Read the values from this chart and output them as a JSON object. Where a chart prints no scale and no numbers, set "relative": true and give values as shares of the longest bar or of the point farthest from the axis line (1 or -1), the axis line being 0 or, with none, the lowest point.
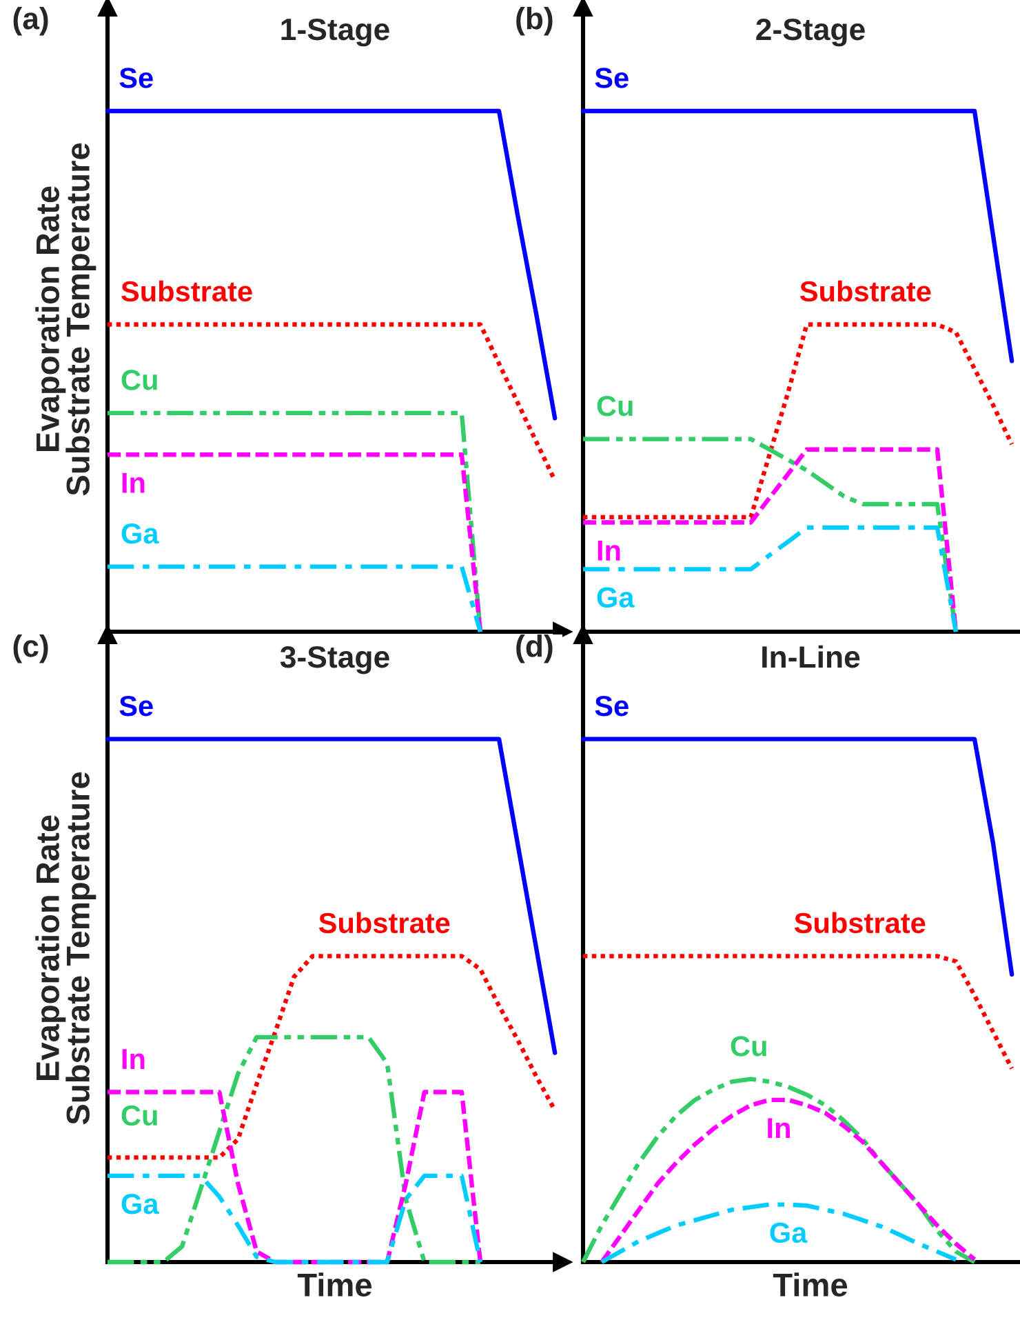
{
  "chart_data": [
    {
      "type": "line",
      "title": "1-Stage",
      "relative": true,
      "ylabel": "Evaporation Rate\nSubstrate Temperature",
      "annotations": [
        "(a)"
      ],
      "categories": [
        null,
        null,
        null,
        null,
        null,
        null,
        null,
        null,
        null,
        null,
        null,
        null,
        null,
        null,
        null,
        null,
        null,
        null,
        null,
        null,
        null,
        null,
        null,
        null,
        null
      ],
      "series": [
        {
          "name": "Se",
          "color": "#0000ff",
          "line_style": "solid",
          "values": [
            1,
            1,
            1,
            1,
            1,
            1,
            1,
            1,
            1,
            1,
            1,
            1,
            1,
            1,
            1,
            1,
            1,
            1,
            1,
            1,
            1,
            1,
            0.8,
            0.61,
            0.41
          ]
        },
        {
          "name": "Substrate",
          "color": "#ff0000",
          "line_style": "dotted",
          "values": [
            0.59,
            0.59,
            0.59,
            0.59,
            0.59,
            0.59,
            0.59,
            0.59,
            0.59,
            0.59,
            0.59,
            0.59,
            0.59,
            0.59,
            0.59,
            0.59,
            0.59,
            0.59,
            0.59,
            0.59,
            0.59,
            0.515,
            0.44,
            0.365,
            0.29
          ]
        },
        {
          "name": "Cu",
          "color": "#33cc66",
          "line_style": "dashdotdot",
          "values": [
            0.42,
            0.42,
            0.42,
            0.42,
            0.42,
            0.42,
            0.42,
            0.42,
            0.42,
            0.42,
            0.42,
            0.42,
            0.42,
            0.42,
            0.42,
            0.42,
            0.42,
            0.42,
            0.42,
            0.42,
            0,
            null,
            null,
            null,
            null
          ]
        },
        {
          "name": "In",
          "color": "#ff00ff",
          "line_style": "dashed",
          "values": [
            0.34,
            0.34,
            0.34,
            0.34,
            0.34,
            0.34,
            0.34,
            0.34,
            0.34,
            0.34,
            0.34,
            0.34,
            0.34,
            0.34,
            0.34,
            0.34,
            0.34,
            0.34,
            0.34,
            0.34,
            0,
            null,
            null,
            null,
            null
          ]
        },
        {
          "name": "Ga",
          "color": "#00ccff",
          "line_style": "dashdot",
          "values": [
            0.125,
            0.125,
            0.125,
            0.125,
            0.125,
            0.125,
            0.125,
            0.125,
            0.125,
            0.125,
            0.125,
            0.125,
            0.125,
            0.125,
            0.125,
            0.125,
            0.125,
            0.125,
            0.125,
            0.125,
            0,
            null,
            null,
            null,
            null
          ]
        }
      ]
    },
    {
      "type": "line",
      "title": "2-Stage",
      "relative": true,
      "annotations": [
        "(b)"
      ],
      "categories": [
        null,
        null,
        null,
        null,
        null,
        null,
        null,
        null,
        null,
        null,
        null,
        null,
        null,
        null,
        null,
        null,
        null,
        null,
        null,
        null,
        null,
        null,
        null,
        null,
        null
      ],
      "series": [
        {
          "name": "Se",
          "color": "#0000ff",
          "line_style": "solid",
          "values": [
            1,
            1,
            1,
            1,
            1,
            1,
            1,
            1,
            1,
            1,
            1,
            1,
            1,
            1,
            1,
            1,
            1,
            1,
            1,
            1,
            1,
            1,
            0.76,
            0.52,
            null
          ]
        },
        {
          "name": "Substrate",
          "color": "#ff0000",
          "line_style": "dotted",
          "values": [
            0.22,
            0.22,
            0.22,
            0.22,
            0.22,
            0.22,
            0.22,
            0.22,
            0.22,
            0.22,
            0.34,
            0.46,
            0.59,
            0.59,
            0.59,
            0.59,
            0.59,
            0.59,
            0.59,
            0.59,
            0.575,
            0.505,
            0.435,
            0.36,
            null
          ]
        },
        {
          "name": "Cu",
          "color": "#33cc66",
          "line_style": "dashdotdot",
          "values": [
            0.37,
            0.37,
            0.37,
            0.37,
            0.37,
            0.37,
            0.37,
            0.37,
            0.37,
            0.37,
            0.35,
            0.33,
            0.31,
            0.285,
            0.26,
            0.245,
            0.245,
            0.245,
            0.245,
            0.245,
            0,
            null,
            null,
            null,
            null
          ]
        },
        {
          "name": "In",
          "color": "#ff00ff",
          "line_style": "dashed",
          "values": [
            0.21,
            0.21,
            0.21,
            0.21,
            0.21,
            0.21,
            0.21,
            0.21,
            0.21,
            0.21,
            0.257,
            0.303,
            0.35,
            0.35,
            0.35,
            0.35,
            0.35,
            0.35,
            0.35,
            0.35,
            0,
            null,
            null,
            null,
            null
          ]
        },
        {
          "name": "Ga",
          "color": "#00ccff",
          "line_style": "dashdot",
          "values": [
            0.12,
            0.12,
            0.12,
            0.12,
            0.12,
            0.12,
            0.12,
            0.12,
            0.12,
            0.12,
            0.147,
            0.173,
            0.2,
            0.2,
            0.2,
            0.2,
            0.2,
            0.2,
            0.2,
            0.2,
            0,
            null,
            null,
            null,
            null
          ]
        }
      ]
    },
    {
      "type": "line",
      "title": "3-Stage",
      "relative": true,
      "xlabel": "Time",
      "ylabel": "Evaporation Rate\nSubstrate Temperature",
      "annotations": [
        "(c)"
      ],
      "categories": [
        null,
        null,
        null,
        null,
        null,
        null,
        null,
        null,
        null,
        null,
        null,
        null,
        null,
        null,
        null,
        null,
        null,
        null,
        null,
        null,
        null,
        null,
        null,
        null,
        null
      ],
      "series": [
        {
          "name": "Se",
          "color": "#0000ff",
          "line_style": "solid",
          "values": [
            1,
            1,
            1,
            1,
            1,
            1,
            1,
            1,
            1,
            1,
            1,
            1,
            1,
            1,
            1,
            1,
            1,
            1,
            1,
            1,
            1,
            1,
            0.8,
            0.6,
            0.4
          ]
        },
        {
          "name": "Substrate",
          "color": "#ff0000",
          "line_style": "dotted",
          "values": [
            0.2,
            0.2,
            0.2,
            0.2,
            0.2,
            0.2,
            0.2,
            0.235,
            0.34,
            0.44,
            0.545,
            0.585,
            0.585,
            0.585,
            0.585,
            0.585,
            0.585,
            0.585,
            0.585,
            0.585,
            0.56,
            0.49,
            0.425,
            0.355,
            0.29
          ]
        },
        {
          "name": "Cu",
          "color": "#33cc66",
          "line_style": "dashdotdot",
          "values": [
            0,
            0,
            0,
            0,
            0.03,
            0.14,
            0.25,
            0.36,
            0.43,
            0.43,
            0.43,
            0.43,
            0.43,
            0.43,
            0.43,
            0.38,
            0.12,
            0,
            0,
            0,
            0,
            null,
            null,
            null,
            null
          ]
        },
        {
          "name": "In",
          "color": "#ff00ff",
          "line_style": "dashed",
          "values": [
            0.325,
            0.325,
            0.325,
            0.325,
            0.325,
            0.325,
            0.325,
            0.15,
            0.02,
            0,
            0,
            0,
            0,
            0,
            0,
            0,
            0.15,
            0.325,
            0.325,
            0.325,
            0,
            null,
            null,
            null,
            null
          ]
        },
        {
          "name": "Ga",
          "color": "#00ccff",
          "line_style": "dashdot",
          "values": [
            0.165,
            0.165,
            0.165,
            0.165,
            0.165,
            0.165,
            0.125,
            0.07,
            0.01,
            0,
            0,
            0,
            0,
            0,
            0,
            0,
            0.12,
            0.165,
            0.165,
            0.165,
            0,
            null,
            null,
            null,
            null
          ]
        }
      ]
    },
    {
      "type": "line",
      "title": "In-Line",
      "relative": true,
      "xlabel": "Time",
      "annotations": [
        "(d)"
      ],
      "categories": [
        null,
        null,
        null,
        null,
        null,
        null,
        null,
        null,
        null,
        null,
        null,
        null,
        null,
        null,
        null,
        null,
        null,
        null,
        null,
        null,
        null,
        null,
        null,
        null,
        null
      ],
      "series": [
        {
          "name": "Se",
          "color": "#0000ff",
          "line_style": "solid",
          "values": [
            1,
            1,
            1,
            1,
            1,
            1,
            1,
            1,
            1,
            1,
            1,
            1,
            1,
            1,
            1,
            1,
            1,
            1,
            1,
            1,
            1,
            1,
            0.8,
            0.55,
            null
          ]
        },
        {
          "name": "Substrate",
          "color": "#ff0000",
          "line_style": "dotted",
          "values": [
            0.585,
            0.585,
            0.585,
            0.585,
            0.585,
            0.585,
            0.585,
            0.585,
            0.585,
            0.585,
            0.585,
            0.585,
            0.585,
            0.585,
            0.585,
            0.585,
            0.585,
            0.585,
            0.585,
            0.585,
            0.575,
            0.51,
            0.44,
            0.37,
            null
          ]
        },
        {
          "name": "Cu",
          "color": "#33cc66",
          "line_style": "dashdotdot",
          "values": [
            0,
            0.07,
            0.13,
            0.19,
            0.24,
            0.28,
            0.31,
            0.33,
            0.345,
            0.35,
            0.345,
            0.335,
            0.32,
            0.3,
            0.27,
            0.235,
            0.19,
            0.15,
            0.11,
            0.06,
            0.02,
            0,
            null,
            null,
            null
          ]
        },
        {
          "name": "In",
          "color": "#ff00ff",
          "line_style": "dashed",
          "values": [
            null,
            0,
            0.05,
            0.1,
            0.15,
            0.19,
            0.225,
            0.255,
            0.28,
            0.3,
            0.31,
            0.31,
            0.3,
            0.285,
            0.26,
            0.23,
            0.19,
            0.15,
            0.11,
            0.07,
            0.035,
            0.005,
            null,
            null,
            null
          ]
        },
        {
          "name": "Ga",
          "color": "#00ccff",
          "line_style": "dashdot",
          "values": [
            null,
            0,
            0.02,
            0.04,
            0.055,
            0.07,
            0.08,
            0.09,
            0.1,
            0.105,
            0.11,
            0.11,
            0.108,
            0.1,
            0.092,
            0.08,
            0.068,
            0.052,
            0.035,
            0.02,
            0.005,
            null,
            null,
            null,
            null
          ]
        }
      ]
    }
  ]
}
